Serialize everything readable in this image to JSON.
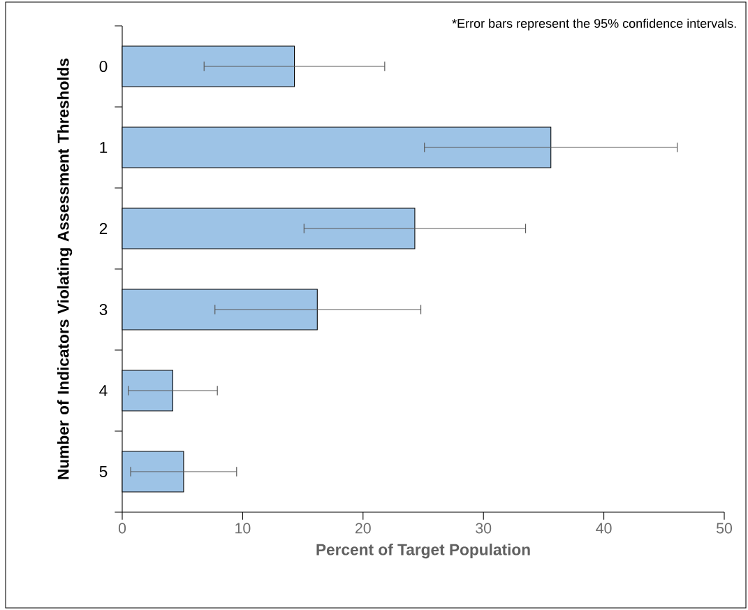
{
  "chart_data": {
    "type": "bar",
    "orientation": "horizontal",
    "categories": [
      "0",
      "1",
      "2",
      "3",
      "4",
      "5"
    ],
    "values": [
      14.3,
      35.6,
      24.3,
      16.2,
      4.2,
      5.1
    ],
    "errors": [
      [
        6.8,
        21.8
      ],
      [
        25.1,
        46.1
      ],
      [
        15.1,
        33.5
      ],
      [
        7.7,
        24.8
      ],
      [
        0.5,
        7.9
      ],
      [
        0.7,
        9.5
      ]
    ],
    "color": "#9dc3e6",
    "xlim": [
      0,
      50
    ],
    "xticks": [
      0,
      10,
      20,
      30,
      40,
      50
    ],
    "xlabel": "Percent of Target Population",
    "ylabel": "Number of Indicators Violating  Assessment Thresholds",
    "annotations": [
      "*Error bars represent the 95% confidence intervals."
    ]
  }
}
